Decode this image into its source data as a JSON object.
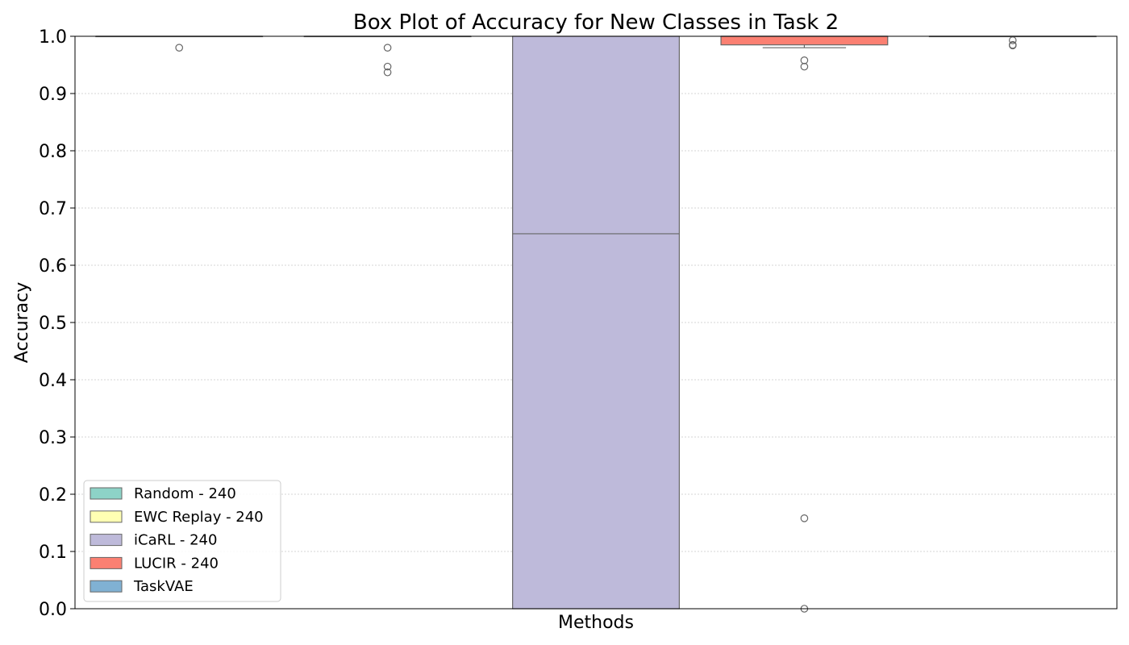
{
  "chart_data": {
    "type": "box",
    "title": "Box Plot of Accuracy for New Classes in Task 2",
    "xlabel": "Methods",
    "ylabel": "Accuracy",
    "ylim": [
      0,
      1
    ],
    "yticks": [
      "0.0",
      "0.1",
      "0.2",
      "0.3",
      "0.4",
      "0.5",
      "0.6",
      "0.7",
      "0.8",
      "0.9",
      "1.0"
    ],
    "grid": "horizontal dotted",
    "legend_position": "lower-left",
    "series": [
      {
        "name": "Random - 240",
        "color": "#8dd3c7",
        "whisker_low": 1.0,
        "q1": 1.0,
        "median": 1.0,
        "q3": 1.0,
        "whisker_high": 1.0,
        "outliers": [
          0.98
        ]
      },
      {
        "name": "EWC Replay - 240",
        "color": "#ffffb3",
        "whisker_low": 1.0,
        "q1": 1.0,
        "median": 1.0,
        "q3": 1.0,
        "whisker_high": 1.0,
        "outliers": [
          0.98,
          0.947,
          0.937
        ]
      },
      {
        "name": "iCaRL - 240",
        "color": "#bebada",
        "whisker_low": 0.0,
        "q1": 0.0,
        "median": 0.655,
        "q3": 1.0,
        "whisker_high": 1.0,
        "outliers": []
      },
      {
        "name": "LUCIR - 240",
        "color": "#fb8072",
        "whisker_low": 0.98,
        "q1": 0.985,
        "median": 1.0,
        "q3": 1.0,
        "whisker_high": 1.0,
        "outliers": [
          0.958,
          0.947,
          0.158,
          0.0
        ]
      },
      {
        "name": "TaskVAE",
        "color": "#80b1d3",
        "whisker_low": 1.0,
        "q1": 1.0,
        "median": 1.0,
        "q3": 1.0,
        "whisker_high": 1.0,
        "outliers": [
          0.993,
          0.985,
          0.984
        ]
      }
    ]
  }
}
